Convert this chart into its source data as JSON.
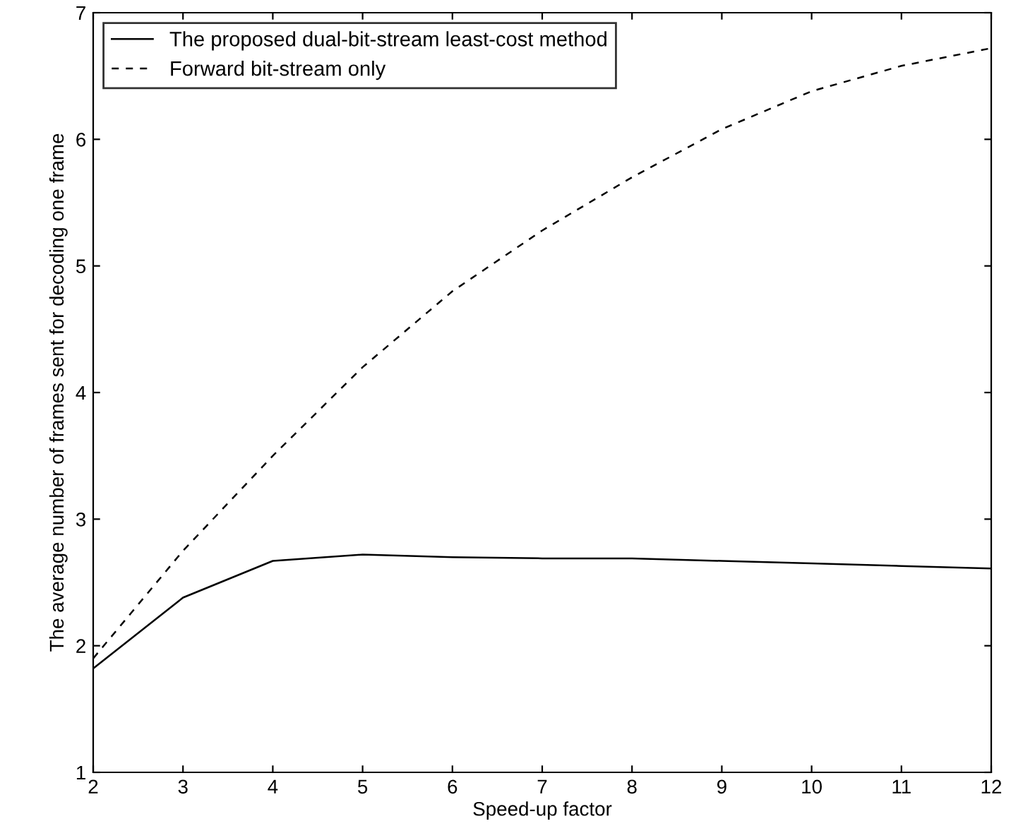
{
  "chart_data": {
    "type": "line",
    "xlabel": "Speed-up factor",
    "ylabel": "The average number of frames sent for decoding one frame",
    "x": [
      2,
      3,
      4,
      5,
      6,
      7,
      8,
      9,
      10,
      11,
      12
    ],
    "series": [
      {
        "name": "The proposed dual-bit-stream least-cost method",
        "color": "#000000",
        "line_style": "solid",
        "values": [
          1.82,
          2.38,
          2.67,
          2.72,
          2.7,
          2.69,
          2.69,
          2.67,
          2.65,
          2.63,
          2.61
        ]
      },
      {
        "name": "Forward bit-stream only",
        "color": "#000000",
        "line_style": "dashed",
        "values": [
          1.9,
          2.75,
          3.5,
          4.2,
          4.8,
          5.28,
          5.7,
          6.08,
          6.38,
          6.58,
          6.72
        ]
      }
    ],
    "xlim": [
      2,
      12
    ],
    "xticks": [
      2,
      3,
      4,
      5,
      6,
      7,
      8,
      9,
      10,
      11,
      12
    ],
    "ylim": [
      1,
      7
    ],
    "yticks": [
      1,
      2,
      3,
      4,
      5,
      6,
      7
    ],
    "grid": false,
    "legend": "top left",
    "marker": "none"
  }
}
